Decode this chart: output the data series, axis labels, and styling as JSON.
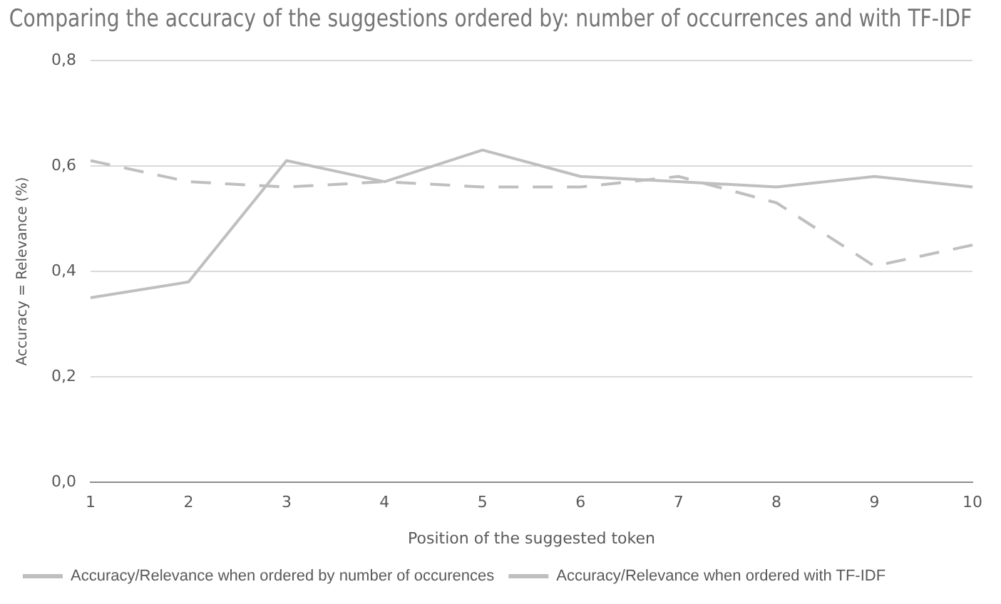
{
  "chart_data": {
    "type": "line",
    "title": "Comparing the accuracy of the suggestions ordered by: number of occurrences and with TF-IDF",
    "xlabel": "Position of the suggested token",
    "ylabel": "Accuracy = Relevance (%)",
    "categories": [
      "1",
      "2",
      "3",
      "4",
      "5",
      "6",
      "7",
      "8",
      "9",
      "10"
    ],
    "series": [
      {
        "name": "Accuracy/Relevance when ordered by number of occurences",
        "color": "#bfbfbf",
        "line_style": "solid",
        "values": [
          0.35,
          0.38,
          0.61,
          0.57,
          0.63,
          0.58,
          0.57,
          0.56,
          0.58,
          0.56
        ]
      },
      {
        "name": "Accuracy/Relevance when ordered with TF-IDF",
        "color": "#bfbfbf",
        "line_style": "dashed",
        "values": [
          0.61,
          0.57,
          0.56,
          0.57,
          0.56,
          0.56,
          0.58,
          0.53,
          0.41,
          0.45
        ]
      }
    ],
    "ylim": [
      0,
      0.8
    ],
    "yticks": [
      {
        "value": 0,
        "label": "0,0"
      },
      {
        "value": 0.2,
        "label": "0,2"
      },
      {
        "value": 0.4,
        "label": "0,4"
      },
      {
        "value": 0.6,
        "label": "0,6"
      },
      {
        "value": 0.8,
        "label": "0,8"
      }
    ],
    "grid": "y",
    "legend": "bottom",
    "marker": "none"
  }
}
